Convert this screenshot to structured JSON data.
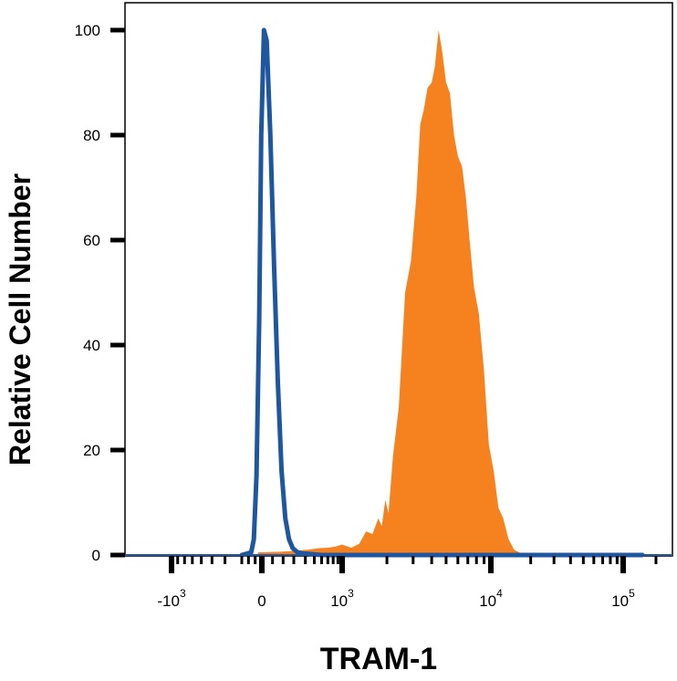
{
  "chart_data": {
    "type": "area",
    "title": "",
    "xlabel": "TRAM-1",
    "ylabel": "Relative Cell Number",
    "x_scale": "biexponential",
    "ylim": [
      0,
      100
    ],
    "y_ticks": [
      0,
      20,
      40,
      60,
      80,
      100
    ],
    "x_ticks": [
      {
        "value": -1000,
        "base": "-10",
        "exponent": "3"
      },
      {
        "value": 0,
        "base": "0",
        "exponent": ""
      },
      {
        "value": 1000,
        "base": "10",
        "exponent": "3"
      },
      {
        "value": 10000,
        "base": "10",
        "exponent": "4"
      },
      {
        "value": 100000,
        "base": "10",
        "exponent": "5"
      }
    ],
    "grid": false,
    "legend": "none",
    "series": [
      {
        "style": "filled",
        "color": "#f5821f",
        "points": [
          [
            -60,
            0.5
          ],
          [
            150,
            0.6
          ],
          [
            230,
            0.7
          ],
          [
            300,
            0.8
          ],
          [
            420,
            1.0
          ],
          [
            560,
            1.3
          ],
          [
            700,
            1.4
          ],
          [
            850,
            1.6
          ],
          [
            1000,
            2.0
          ],
          [
            1150,
            1.4
          ],
          [
            1300,
            2.1
          ],
          [
            1450,
            4.5
          ],
          [
            1600,
            4.0
          ],
          [
            1750,
            7.0
          ],
          [
            1850,
            5.5
          ],
          [
            1950,
            10.5
          ],
          [
            2050,
            8.0
          ],
          [
            2200,
            19.0
          ],
          [
            2400,
            28.0
          ],
          [
            2650,
            50.0
          ],
          [
            2900,
            56.0
          ],
          [
            3150,
            68.0
          ],
          [
            3350,
            82.0
          ],
          [
            3550,
            85.0
          ],
          [
            3750,
            89.0
          ],
          [
            4000,
            90.0
          ],
          [
            4200,
            93.0
          ],
          [
            4450,
            100.0
          ],
          [
            4700,
            96.0
          ],
          [
            5000,
            90.0
          ],
          [
            5300,
            88.0
          ],
          [
            5650,
            80.0
          ],
          [
            6000,
            76.0
          ],
          [
            6400,
            74.0
          ],
          [
            6800,
            68.0
          ],
          [
            7200,
            60.0
          ],
          [
            7700,
            51.0
          ],
          [
            8300,
            46.0
          ],
          [
            9000,
            35.0
          ],
          [
            9700,
            21.0
          ],
          [
            10500,
            16.0
          ],
          [
            11400,
            9.0
          ],
          [
            12400,
            7.0
          ],
          [
            13600,
            3.0
          ],
          [
            15000,
            1.0
          ],
          [
            17000,
            0.3
          ],
          [
            60000,
            0.1
          ],
          [
            150000,
            0.2
          ]
        ]
      },
      {
        "style": "line",
        "color": "#1e56a0",
        "points": [
          [
            -300,
            0
          ],
          [
            -160,
            0.5
          ],
          [
            -120,
            3
          ],
          [
            -80,
            15
          ],
          [
            -40,
            45
          ],
          [
            -10,
            80
          ],
          [
            20,
            100
          ],
          [
            45,
            98
          ],
          [
            80,
            80
          ],
          [
            115,
            55
          ],
          [
            150,
            33
          ],
          [
            185,
            16
          ],
          [
            220,
            7
          ],
          [
            255,
            3
          ],
          [
            290,
            1.3
          ],
          [
            330,
            0.5
          ],
          [
            380,
            0.3
          ],
          [
            450,
            0.2
          ],
          [
            600,
            0
          ],
          [
            150000,
            0
          ]
        ]
      }
    ]
  }
}
